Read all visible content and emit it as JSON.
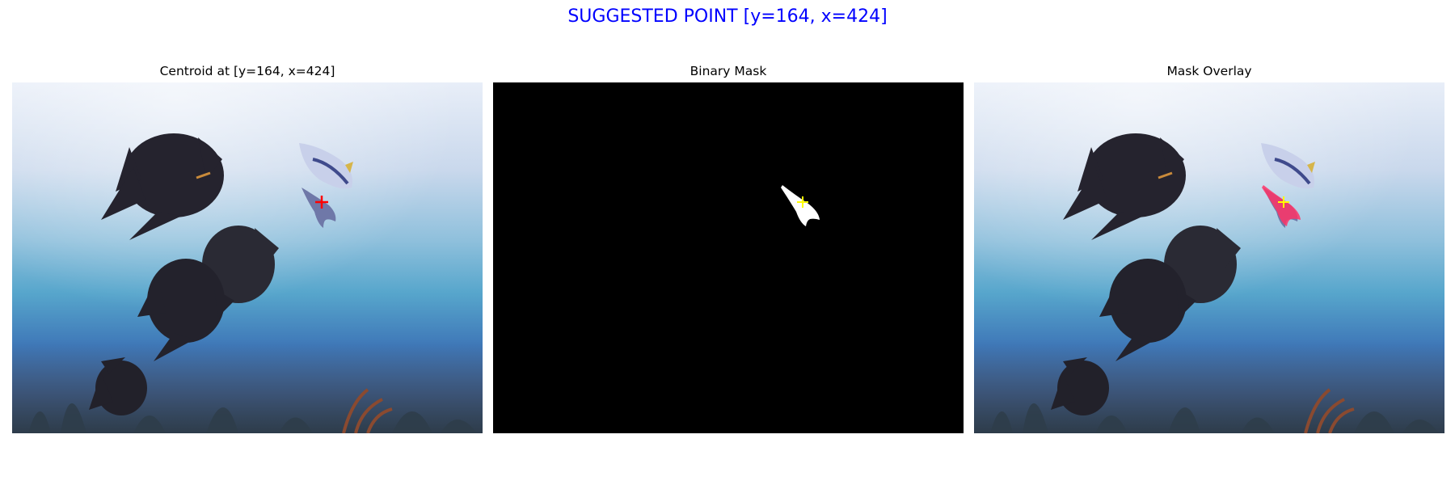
{
  "figure": {
    "suptitle": "SUGGESTED POINT [y=164, x=424]",
    "suptitle_color": "#0000ff"
  },
  "panels": [
    {
      "title": "Centroid at [y=164, x=424]",
      "marker_color": "#ff0000",
      "content": "underwater photo with point marker"
    },
    {
      "title": "Binary Mask",
      "marker_color": "#ffff00",
      "content": "black background, white mask, point marker"
    },
    {
      "title": "Mask Overlay",
      "marker_color": "#ffff00",
      "overlay_color": "#ff3366",
      "content": "underwater photo with mask overlay and point marker"
    }
  ],
  "point": {
    "y": 164,
    "x": 424
  }
}
